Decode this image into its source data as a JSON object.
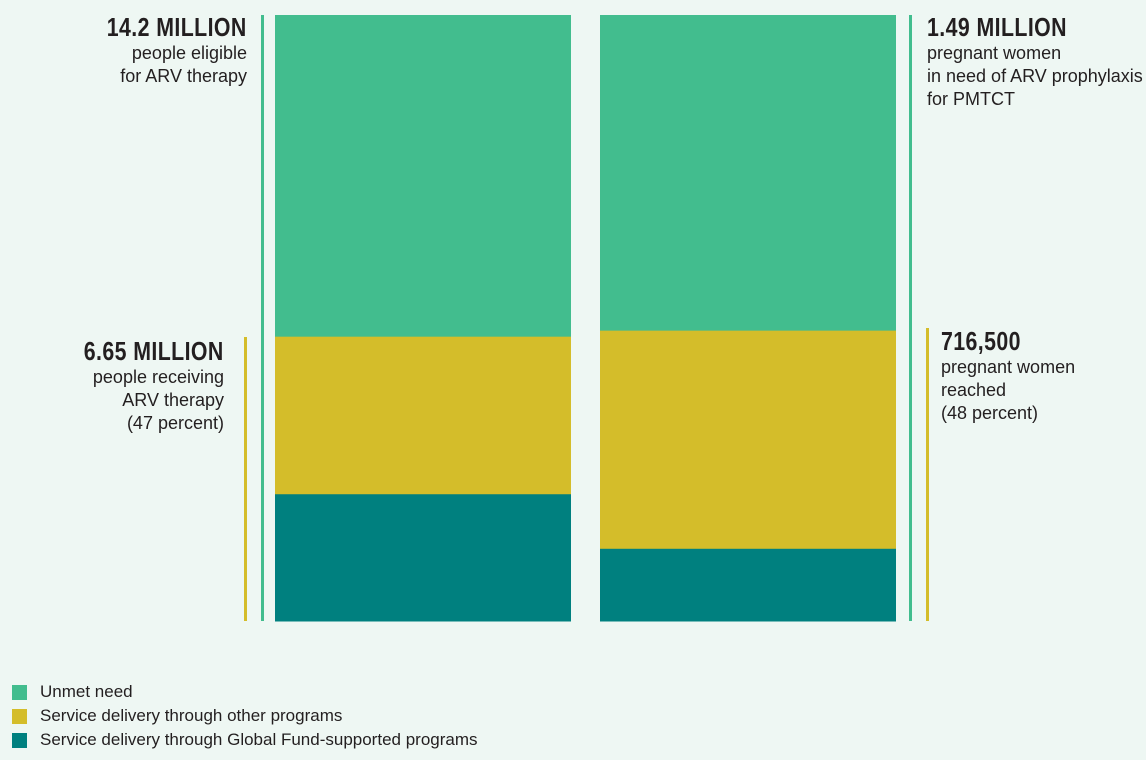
{
  "colors": {
    "unmet": "#42bd8e",
    "other": "#d4bd2a",
    "global_fund": "#00807f",
    "background": "#eef7f3"
  },
  "annotations": {
    "left_total": {
      "value": "14.2 MILLION",
      "desc": "people eligible\nfor ARV therapy"
    },
    "left_reached": {
      "value": "6.65 MILLION",
      "desc": "people receiving\nARV therapy\n(47 percent)"
    },
    "right_total": {
      "value": "1.49 MILLION",
      "desc": "pregnant women\nin need of ARV prophylaxis\nfor PMTCT"
    },
    "right_reached": {
      "value": "716,500",
      "desc": "pregnant women\nreached\n(48 percent)"
    }
  },
  "legend": [
    {
      "label": "Unmet need",
      "color": "#42bd8e"
    },
    {
      "label": "Service delivery through other programs",
      "color": "#d4bd2a"
    },
    {
      "label": "Service delivery through Global Fund-supported programs",
      "color": "#00807f"
    }
  ],
  "chart_data": {
    "type": "bar",
    "stacked": true,
    "normalized": true,
    "unit": "percent of need",
    "categories": [
      "ARV therapy",
      "PMTCT"
    ],
    "series": [
      {
        "name": "Service delivery through Global Fund-supported programs",
        "values": [
          21,
          12
        ]
      },
      {
        "name": "Service delivery through other programs",
        "values": [
          26,
          36
        ]
      },
      {
        "name": "Unmet need",
        "values": [
          53,
          52
        ]
      }
    ],
    "ylim": [
      0,
      100
    ],
    "grid": false,
    "legend_position": "bottom-left"
  }
}
